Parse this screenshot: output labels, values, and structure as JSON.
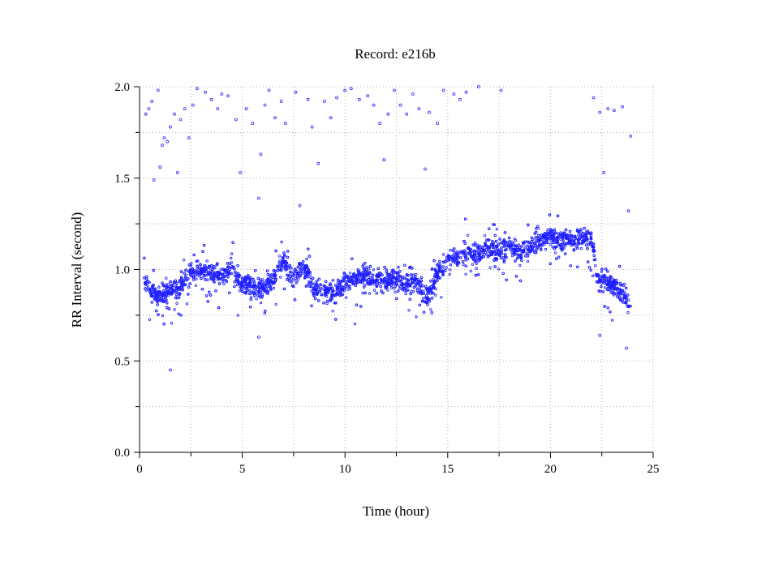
{
  "chart_data": {
    "type": "scatter",
    "title": "Record:  e216b",
    "xlabel": "Time (hour)",
    "ylabel": "RR Interval (second)",
    "xlim": [
      0,
      25
    ],
    "ylim": [
      0.0,
      2.0
    ],
    "xticks": [
      "0",
      "5",
      "10",
      "15",
      "20",
      "25"
    ],
    "yticks": [
      "0.0",
      "0.5",
      "1.0",
      "1.5",
      "2.0"
    ],
    "grid": true,
    "point_color": "#2020ff",
    "series": [
      {
        "trend": [
          [
            0.2,
            0.95
          ],
          [
            0.6,
            0.88
          ],
          [
            1.0,
            0.86
          ],
          [
            1.5,
            0.88
          ],
          [
            2.0,
            0.92
          ],
          [
            2.5,
            0.98
          ],
          [
            3.0,
            1.0
          ],
          [
            3.5,
            0.98
          ],
          [
            4.0,
            0.96
          ],
          [
            4.5,
            1.0
          ],
          [
            5.0,
            0.92
          ],
          [
            5.5,
            0.92
          ],
          [
            6.0,
            0.9
          ],
          [
            6.5,
            0.94
          ],
          [
            7.0,
            1.05
          ],
          [
            7.5,
            0.95
          ],
          [
            8.0,
            1.02
          ],
          [
            8.5,
            0.9
          ],
          [
            9.0,
            0.88
          ],
          [
            9.5,
            0.88
          ],
          [
            10.0,
            0.93
          ],
          [
            10.5,
            0.95
          ],
          [
            11.0,
            0.97
          ],
          [
            11.5,
            0.95
          ],
          [
            12.0,
            0.92
          ],
          [
            12.5,
            0.95
          ],
          [
            13.0,
            0.92
          ],
          [
            13.5,
            0.93
          ],
          [
            14.0,
            0.85
          ],
          [
            14.5,
            0.98
          ],
          [
            15.0,
            1.05
          ],
          [
            15.5,
            1.07
          ],
          [
            16.0,
            1.1
          ],
          [
            16.5,
            1.08
          ],
          [
            17.0,
            1.12
          ],
          [
            17.5,
            1.1
          ],
          [
            18.0,
            1.13
          ],
          [
            18.5,
            1.1
          ],
          [
            19.0,
            1.12
          ],
          [
            19.5,
            1.15
          ],
          [
            20.0,
            1.18
          ],
          [
            20.5,
            1.15
          ],
          [
            21.0,
            1.17
          ],
          [
            21.5,
            1.18
          ],
          [
            22.0,
            1.17
          ],
          [
            22.3,
            0.95
          ],
          [
            23.0,
            0.92
          ],
          [
            23.5,
            0.88
          ],
          [
            23.9,
            0.8
          ]
        ],
        "outliers": [
          [
            0.3,
            1.85
          ],
          [
            0.45,
            1.88
          ],
          [
            0.6,
            1.92
          ],
          [
            0.7,
            1.49
          ],
          [
            0.9,
            1.98
          ],
          [
            1.0,
            1.56
          ],
          [
            1.1,
            1.68
          ],
          [
            1.2,
            1.72
          ],
          [
            1.35,
            1.7
          ],
          [
            1.5,
            1.78
          ],
          [
            1.7,
            1.85
          ],
          [
            1.85,
            1.53
          ],
          [
            2.0,
            1.82
          ],
          [
            2.2,
            1.88
          ],
          [
            2.4,
            1.72
          ],
          [
            2.6,
            1.9
          ],
          [
            2.8,
            1.99
          ],
          [
            3.2,
            1.97
          ],
          [
            3.5,
            1.93
          ],
          [
            3.8,
            1.88
          ],
          [
            4.0,
            1.96
          ],
          [
            4.3,
            1.95
          ],
          [
            4.7,
            1.82
          ],
          [
            4.9,
            1.53
          ],
          [
            5.2,
            1.88
          ],
          [
            5.5,
            1.8
          ],
          [
            5.8,
            1.39
          ],
          [
            5.9,
            1.63
          ],
          [
            6.1,
            1.9
          ],
          [
            6.3,
            1.98
          ],
          [
            6.6,
            1.83
          ],
          [
            6.9,
            1.92
          ],
          [
            7.1,
            1.8
          ],
          [
            7.6,
            1.97
          ],
          [
            7.8,
            1.35
          ],
          [
            8.2,
            1.93
          ],
          [
            8.4,
            1.78
          ],
          [
            8.7,
            1.58
          ],
          [
            9.0,
            1.92
          ],
          [
            9.3,
            1.83
          ],
          [
            9.6,
            1.94
          ],
          [
            10.0,
            1.98
          ],
          [
            10.3,
            1.99
          ],
          [
            10.7,
            1.93
          ],
          [
            11.1,
            1.95
          ],
          [
            11.4,
            1.9
          ],
          [
            11.7,
            1.8
          ],
          [
            11.9,
            1.6
          ],
          [
            12.1,
            1.85
          ],
          [
            12.4,
            1.98
          ],
          [
            12.7,
            1.9
          ],
          [
            13.0,
            1.85
          ],
          [
            13.3,
            1.96
          ],
          [
            13.6,
            1.88
          ],
          [
            13.9,
            1.55
          ],
          [
            14.1,
            1.86
          ],
          [
            14.5,
            1.8
          ],
          [
            14.8,
            1.98
          ],
          [
            15.3,
            1.96
          ],
          [
            15.6,
            1.93
          ],
          [
            15.9,
            1.97
          ],
          [
            16.5,
            2.0
          ],
          [
            17.6,
            1.98
          ],
          [
            22.1,
            1.94
          ],
          [
            22.4,
            1.86
          ],
          [
            22.6,
            1.53
          ],
          [
            22.8,
            1.88
          ],
          [
            23.1,
            1.87
          ],
          [
            23.5,
            1.89
          ],
          [
            23.9,
            1.73
          ],
          [
            23.8,
            1.32
          ],
          [
            5.8,
            0.63
          ],
          [
            1.5,
            0.45
          ],
          [
            22.4,
            0.64
          ],
          [
            23.7,
            0.57
          ]
        ]
      }
    ]
  }
}
